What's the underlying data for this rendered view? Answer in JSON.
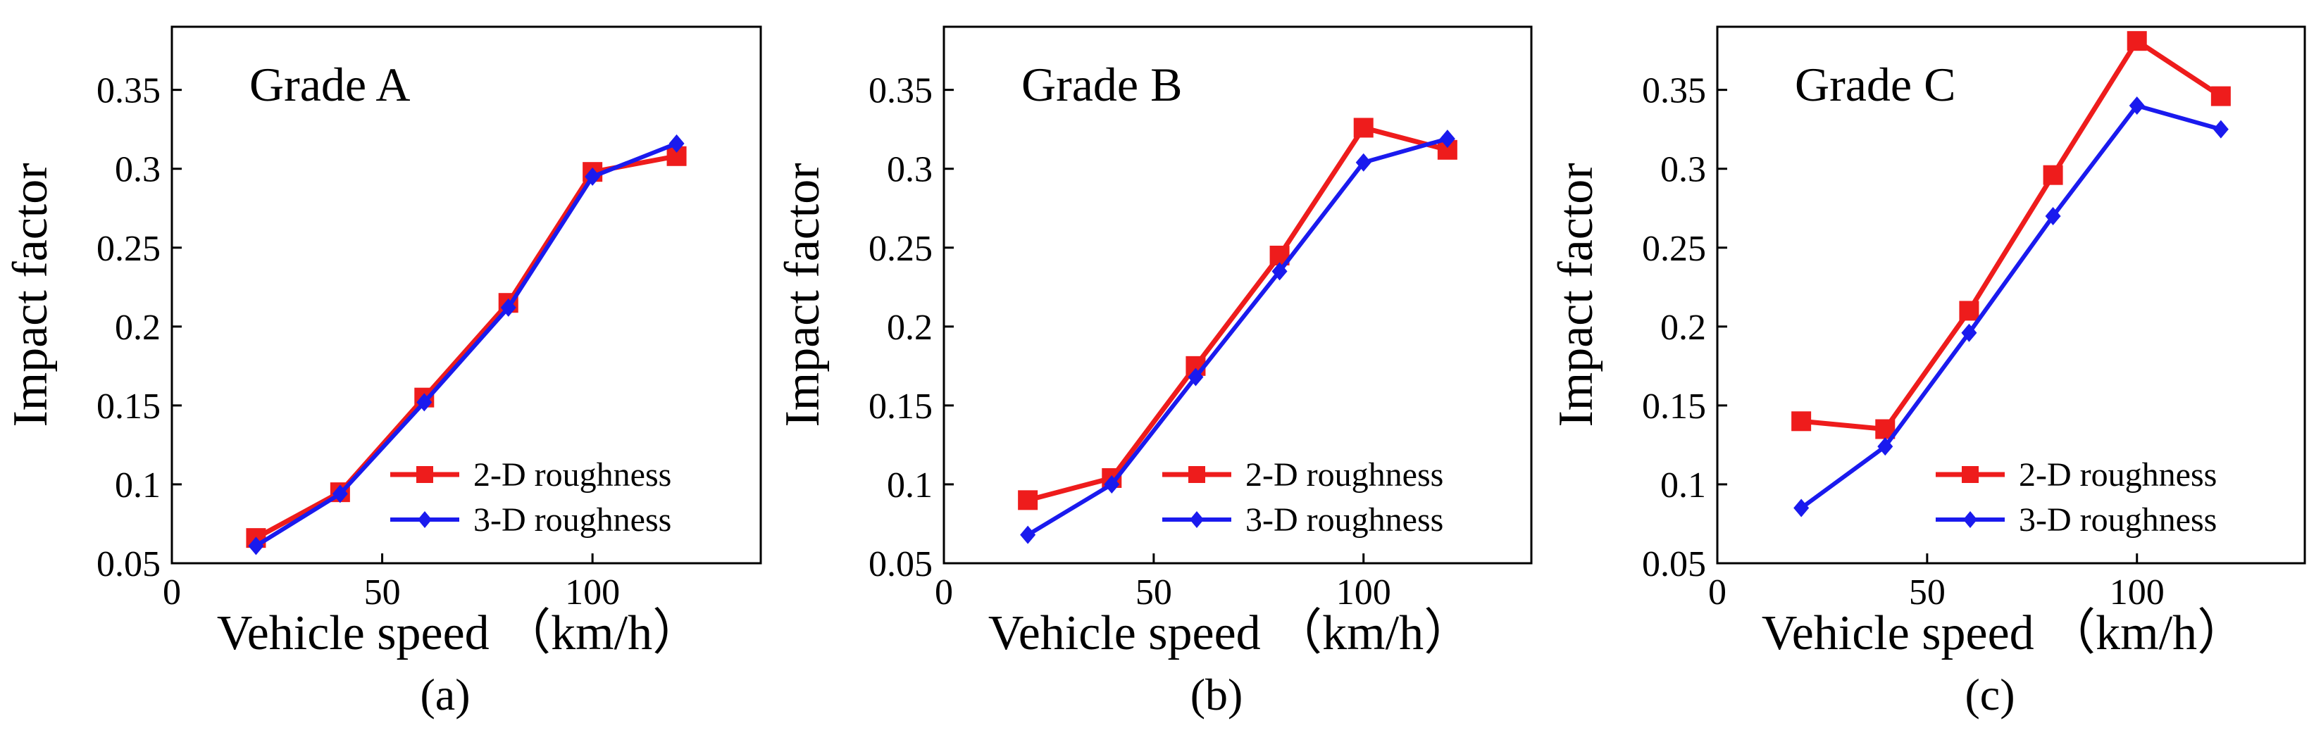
{
  "colors": {
    "series_2d": "#ee1c1c",
    "series_3d": "#1a1aee",
    "axis": "#000000"
  },
  "chart_data": [
    {
      "type": "line",
      "panel_label": "(a)",
      "grade_label": "Grade A",
      "xlabel": "Vehicle speed （km/h）",
      "ylabel": "Impact factor",
      "xlim": [
        0,
        140
      ],
      "ylim": [
        0.05,
        0.39
      ],
      "xticks": [
        0,
        50,
        100
      ],
      "yticks": [
        0.05,
        0.1,
        0.15,
        0.2,
        0.25,
        0.3,
        0.35
      ],
      "ytick_labels": [
        "0.05",
        "0.1",
        "0.15",
        "0.2",
        "0.25",
        "0.3",
        "0.35"
      ],
      "legend_position": "bottom-right",
      "x": [
        20,
        40,
        60,
        80,
        100,
        120
      ],
      "series": [
        {
          "name": "2-D roughness",
          "marker": "square",
          "values": [
            0.066,
            0.095,
            0.155,
            0.215,
            0.298,
            0.308
          ]
        },
        {
          "name": "3-D roughness",
          "marker": "diamond",
          "values": [
            0.061,
            0.094,
            0.152,
            0.212,
            0.295,
            0.316
          ]
        }
      ]
    },
    {
      "type": "line",
      "panel_label": "(b)",
      "grade_label": "Grade B",
      "xlabel": "Vehicle speed （km/h）",
      "ylabel": "Impact factor",
      "xlim": [
        0,
        140
      ],
      "ylim": [
        0.05,
        0.39
      ],
      "xticks": [
        0,
        50,
        100
      ],
      "yticks": [
        0.05,
        0.1,
        0.15,
        0.2,
        0.25,
        0.3,
        0.35
      ],
      "ytick_labels": [
        "0.05",
        "0.1",
        "0.15",
        "0.2",
        "0.25",
        "0.3",
        "0.35"
      ],
      "legend_position": "bottom-right",
      "x": [
        20,
        40,
        60,
        80,
        100,
        120
      ],
      "series": [
        {
          "name": "2-D roughness",
          "marker": "square",
          "values": [
            0.09,
            0.104,
            0.175,
            0.245,
            0.326,
            0.312
          ]
        },
        {
          "name": "3-D roughness",
          "marker": "diamond",
          "values": [
            0.068,
            0.1,
            0.168,
            0.235,
            0.304,
            0.319
          ]
        }
      ]
    },
    {
      "type": "line",
      "panel_label": "(c)",
      "grade_label": "Grade C",
      "xlabel": "Vehicle speed （km/h）",
      "ylabel": "Impact factor",
      "xlim": [
        0,
        140
      ],
      "ylim": [
        0.05,
        0.39
      ],
      "xticks": [
        0,
        50,
        100
      ],
      "yticks": [
        0.05,
        0.1,
        0.15,
        0.2,
        0.25,
        0.3,
        0.35
      ],
      "ytick_labels": [
        "0.05",
        "0.1",
        "0.15",
        "0.2",
        "0.25",
        "0.3",
        "0.35"
      ],
      "legend_position": "bottom-right",
      "x": [
        20,
        40,
        60,
        80,
        100,
        120
      ],
      "series": [
        {
          "name": "2-D roughness",
          "marker": "square",
          "values": [
            0.14,
            0.135,
            0.21,
            0.296,
            0.381,
            0.346
          ]
        },
        {
          "name": "3-D roughness",
          "marker": "diamond",
          "values": [
            0.085,
            0.124,
            0.196,
            0.27,
            0.34,
            0.325
          ]
        }
      ]
    }
  ]
}
